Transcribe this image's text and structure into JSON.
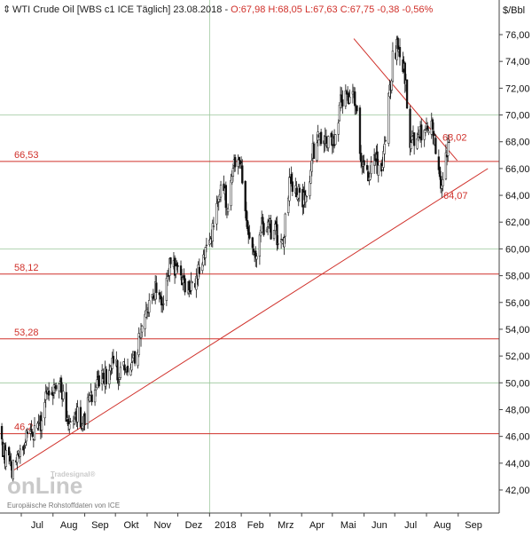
{
  "header": {
    "instrument": "WTI Crude Oil [WBS c1 ICE  Täglich] 23.08.2018 - ",
    "ohlc": "O:67,98 H:68,05 L:67,63 C:67,75 -0,38 -0,56%"
  },
  "axis_unit": "$/Bbl",
  "watermark": {
    "brand_top": "Tradesignal®",
    "brand_main": "onLine",
    "source": "Europäische Rohstoffdaten von ICE"
  },
  "colors": {
    "candle": "#111111",
    "support_resistance": "#d0302a",
    "grid_green": "#9cc79c",
    "grid_grey": "#d6d6d6",
    "axis_panel": "#ffffff"
  },
  "chart_data": {
    "type": "candlestick",
    "title": "WTI Crude Oil [WBS c1 ICE  Täglich] 23.08.2018",
    "ylabel": "$/Bbl",
    "ylim": [
      40.9,
      77.9
    ],
    "y_ticks": [
      42,
      44,
      46,
      48,
      50,
      52,
      54,
      56,
      58,
      60,
      62,
      64,
      66,
      68,
      70,
      72,
      74,
      76
    ],
    "y_tick_labels": [
      "42,00",
      "44,00",
      "46,00",
      "48,00",
      "50,00",
      "52,00",
      "54,00",
      "56,00",
      "58,00",
      "60,00",
      "62,00",
      "64,00",
      "66,00",
      "68,00",
      "70,00",
      "72,00",
      "74,00",
      "76,00"
    ],
    "x_ticks": [
      "Jul",
      "Aug",
      "Sep",
      "Okt",
      "Nov",
      "Dez",
      "2018",
      "Feb",
      "Mrz",
      "Apr",
      "Mai",
      "Jun",
      "Jul",
      "Aug",
      "Sep"
    ],
    "horizontal_levels": [
      {
        "value": 66.53,
        "label": "66,53"
      },
      {
        "value": 58.12,
        "label": "58,12"
      },
      {
        "value": 53.28,
        "label": "53,28"
      },
      {
        "value": 46.2,
        "label": "46,2"
      }
    ],
    "trendlines": [
      {
        "from": {
          "date": "2017-06-22",
          "value": 43.4
        },
        "to": {
          "date": "2018-09-30",
          "value": 66.0
        },
        "label": "64,07",
        "label_value": 64.07
      },
      {
        "from": {
          "date": "2018-05-22",
          "value": 75.7
        },
        "to": {
          "date": "2018-08-31",
          "value": 66.6
        },
        "label": "68,02",
        "label_value": 68.02
      }
    ],
    "close_path": [
      {
        "date": "2017-06-01",
        "close": 49.2
      },
      {
        "date": "2017-06-08",
        "close": 46.5
      },
      {
        "date": "2017-06-15",
        "close": 44.7
      },
      {
        "date": "2017-06-21",
        "close": 43.4
      },
      {
        "date": "2017-06-28",
        "close": 44.9
      },
      {
        "date": "2017-07-05",
        "close": 46.0
      },
      {
        "date": "2017-07-12",
        "close": 45.8
      },
      {
        "date": "2017-07-20",
        "close": 46.9
      },
      {
        "date": "2017-07-28",
        "close": 49.7
      },
      {
        "date": "2017-08-01",
        "close": 49.2
      },
      {
        "date": "2017-08-08",
        "close": 49.4
      },
      {
        "date": "2017-08-15",
        "close": 47.5
      },
      {
        "date": "2017-08-22",
        "close": 47.7
      },
      {
        "date": "2017-08-31",
        "close": 47.2
      },
      {
        "date": "2017-09-07",
        "close": 49.1
      },
      {
        "date": "2017-09-15",
        "close": 50.0
      },
      {
        "date": "2017-09-22",
        "close": 50.7
      },
      {
        "date": "2017-09-28",
        "close": 51.6
      },
      {
        "date": "2017-10-05",
        "close": 50.5
      },
      {
        "date": "2017-10-12",
        "close": 51.3
      },
      {
        "date": "2017-10-20",
        "close": 52.0
      },
      {
        "date": "2017-10-27",
        "close": 53.9
      },
      {
        "date": "2017-11-03",
        "close": 55.6
      },
      {
        "date": "2017-11-08",
        "close": 57.2
      },
      {
        "date": "2017-11-15",
        "close": 55.3
      },
      {
        "date": "2017-11-24",
        "close": 58.9
      },
      {
        "date": "2017-12-01",
        "close": 58.2
      },
      {
        "date": "2017-12-08",
        "close": 57.4
      },
      {
        "date": "2017-12-15",
        "close": 57.3
      },
      {
        "date": "2017-12-22",
        "close": 58.5
      },
      {
        "date": "2017-12-29",
        "close": 60.4
      },
      {
        "date": "2018-01-05",
        "close": 61.4
      },
      {
        "date": "2018-01-12",
        "close": 64.3
      },
      {
        "date": "2018-01-19",
        "close": 63.4
      },
      {
        "date": "2018-01-25",
        "close": 66.1
      },
      {
        "date": "2018-02-01",
        "close": 65.8
      },
      {
        "date": "2018-02-08",
        "close": 61.2
      },
      {
        "date": "2018-02-13",
        "close": 59.2
      },
      {
        "date": "2018-02-21",
        "close": 61.7
      },
      {
        "date": "2018-02-28",
        "close": 61.6
      },
      {
        "date": "2018-03-07",
        "close": 61.1
      },
      {
        "date": "2018-03-14",
        "close": 60.9
      },
      {
        "date": "2018-03-21",
        "close": 65.2
      },
      {
        "date": "2018-03-28",
        "close": 64.4
      },
      {
        "date": "2018-04-05",
        "close": 63.5
      },
      {
        "date": "2018-04-12",
        "close": 67.1
      },
      {
        "date": "2018-04-19",
        "close": 68.3
      },
      {
        "date": "2018-04-26",
        "close": 68.1
      },
      {
        "date": "2018-05-03",
        "close": 68.4
      },
      {
        "date": "2018-05-10",
        "close": 71.4
      },
      {
        "date": "2018-05-17",
        "close": 71.5
      },
      {
        "date": "2018-05-22",
        "close": 72.2
      },
      {
        "date": "2018-05-29",
        "close": 66.7
      },
      {
        "date": "2018-06-05",
        "close": 65.5
      },
      {
        "date": "2018-06-12",
        "close": 66.4
      },
      {
        "date": "2018-06-18",
        "close": 65.8
      },
      {
        "date": "2018-06-22",
        "close": 68.6
      },
      {
        "date": "2018-06-29",
        "close": 74.1
      },
      {
        "date": "2018-07-03",
        "close": 74.9
      },
      {
        "date": "2018-07-10",
        "close": 73.8
      },
      {
        "date": "2018-07-16",
        "close": 68.1
      },
      {
        "date": "2018-07-24",
        "close": 68.5
      },
      {
        "date": "2018-07-31",
        "close": 68.8
      },
      {
        "date": "2018-08-06",
        "close": 69.0
      },
      {
        "date": "2018-08-10",
        "close": 67.6
      },
      {
        "date": "2018-08-15",
        "close": 65.0
      },
      {
        "date": "2018-08-21",
        "close": 67.3
      },
      {
        "date": "2018-08-23",
        "close": 67.75
      }
    ]
  }
}
